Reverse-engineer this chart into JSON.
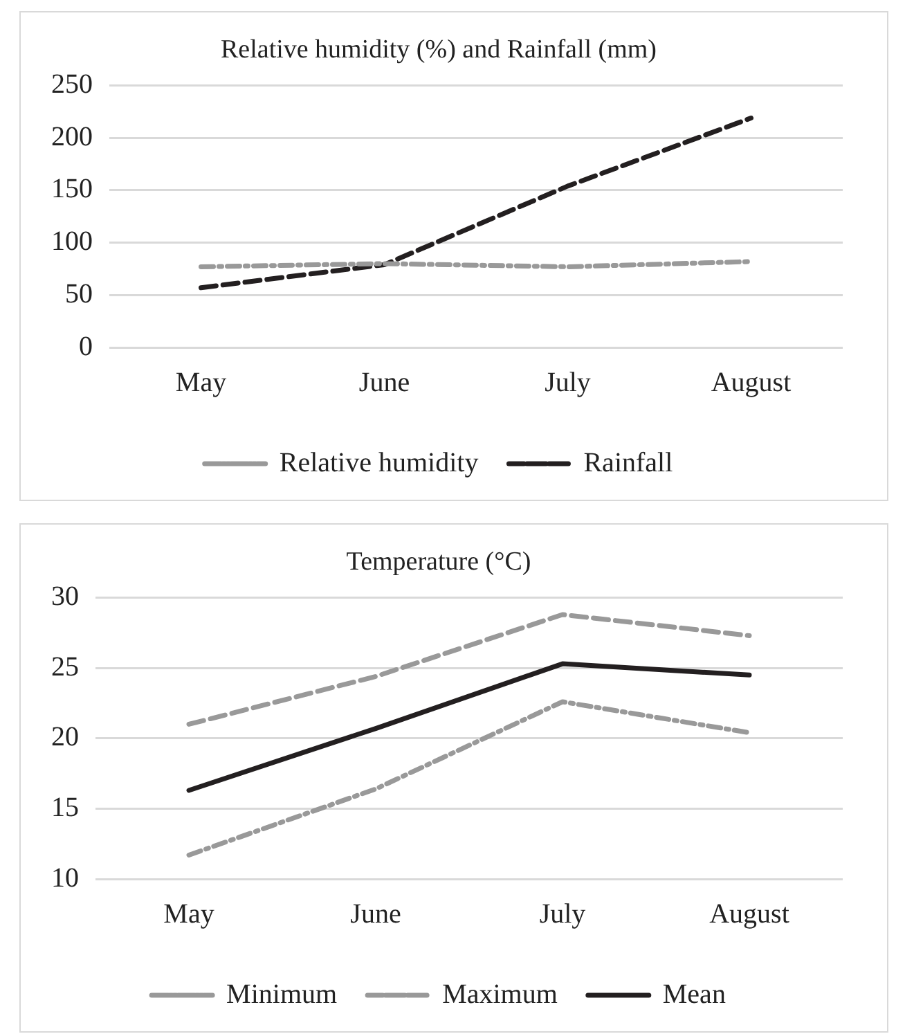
{
  "chart_data": [
    {
      "type": "line",
      "title": "Relative humidity (%) and Rainfall (mm)",
      "categories": [
        "May",
        "June",
        "July",
        "August"
      ],
      "series": [
        {
          "name": "Relative humidity",
          "color": "#999999",
          "line_style": "dashdot",
          "values": [
            77,
            80,
            77,
            82
          ]
        },
        {
          "name": "Rainfall",
          "color": "#231f20",
          "line_style": "dashed",
          "values": [
            57,
            79,
            154,
            219
          ]
        }
      ],
      "ylim": [
        0,
        250
      ],
      "yticks": [
        0,
        50,
        100,
        150,
        200,
        250
      ],
      "grid": "y",
      "legend": "bottom",
      "marker": "none"
    },
    {
      "type": "line",
      "title": "Temperature (°C)",
      "categories": [
        "May",
        "June",
        "July",
        "August"
      ],
      "series": [
        {
          "name": "Minimum",
          "color": "#999999",
          "line_style": "dashdot",
          "values": [
            11.7,
            16.4,
            22.6,
            20.4
          ]
        },
        {
          "name": "Maximum",
          "color": "#999999",
          "line_style": "dashed",
          "values": [
            21,
            24.4,
            28.8,
            27.3
          ]
        },
        {
          "name": "Mean",
          "color": "#231f20",
          "line_style": "solid",
          "values": [
            16.3,
            20.7,
            25.3,
            24.5
          ]
        }
      ],
      "ylim": [
        10,
        30
      ],
      "yticks": [
        10,
        15,
        20,
        25,
        30
      ],
      "grid": "y",
      "legend": "bottom",
      "marker": "none"
    }
  ]
}
